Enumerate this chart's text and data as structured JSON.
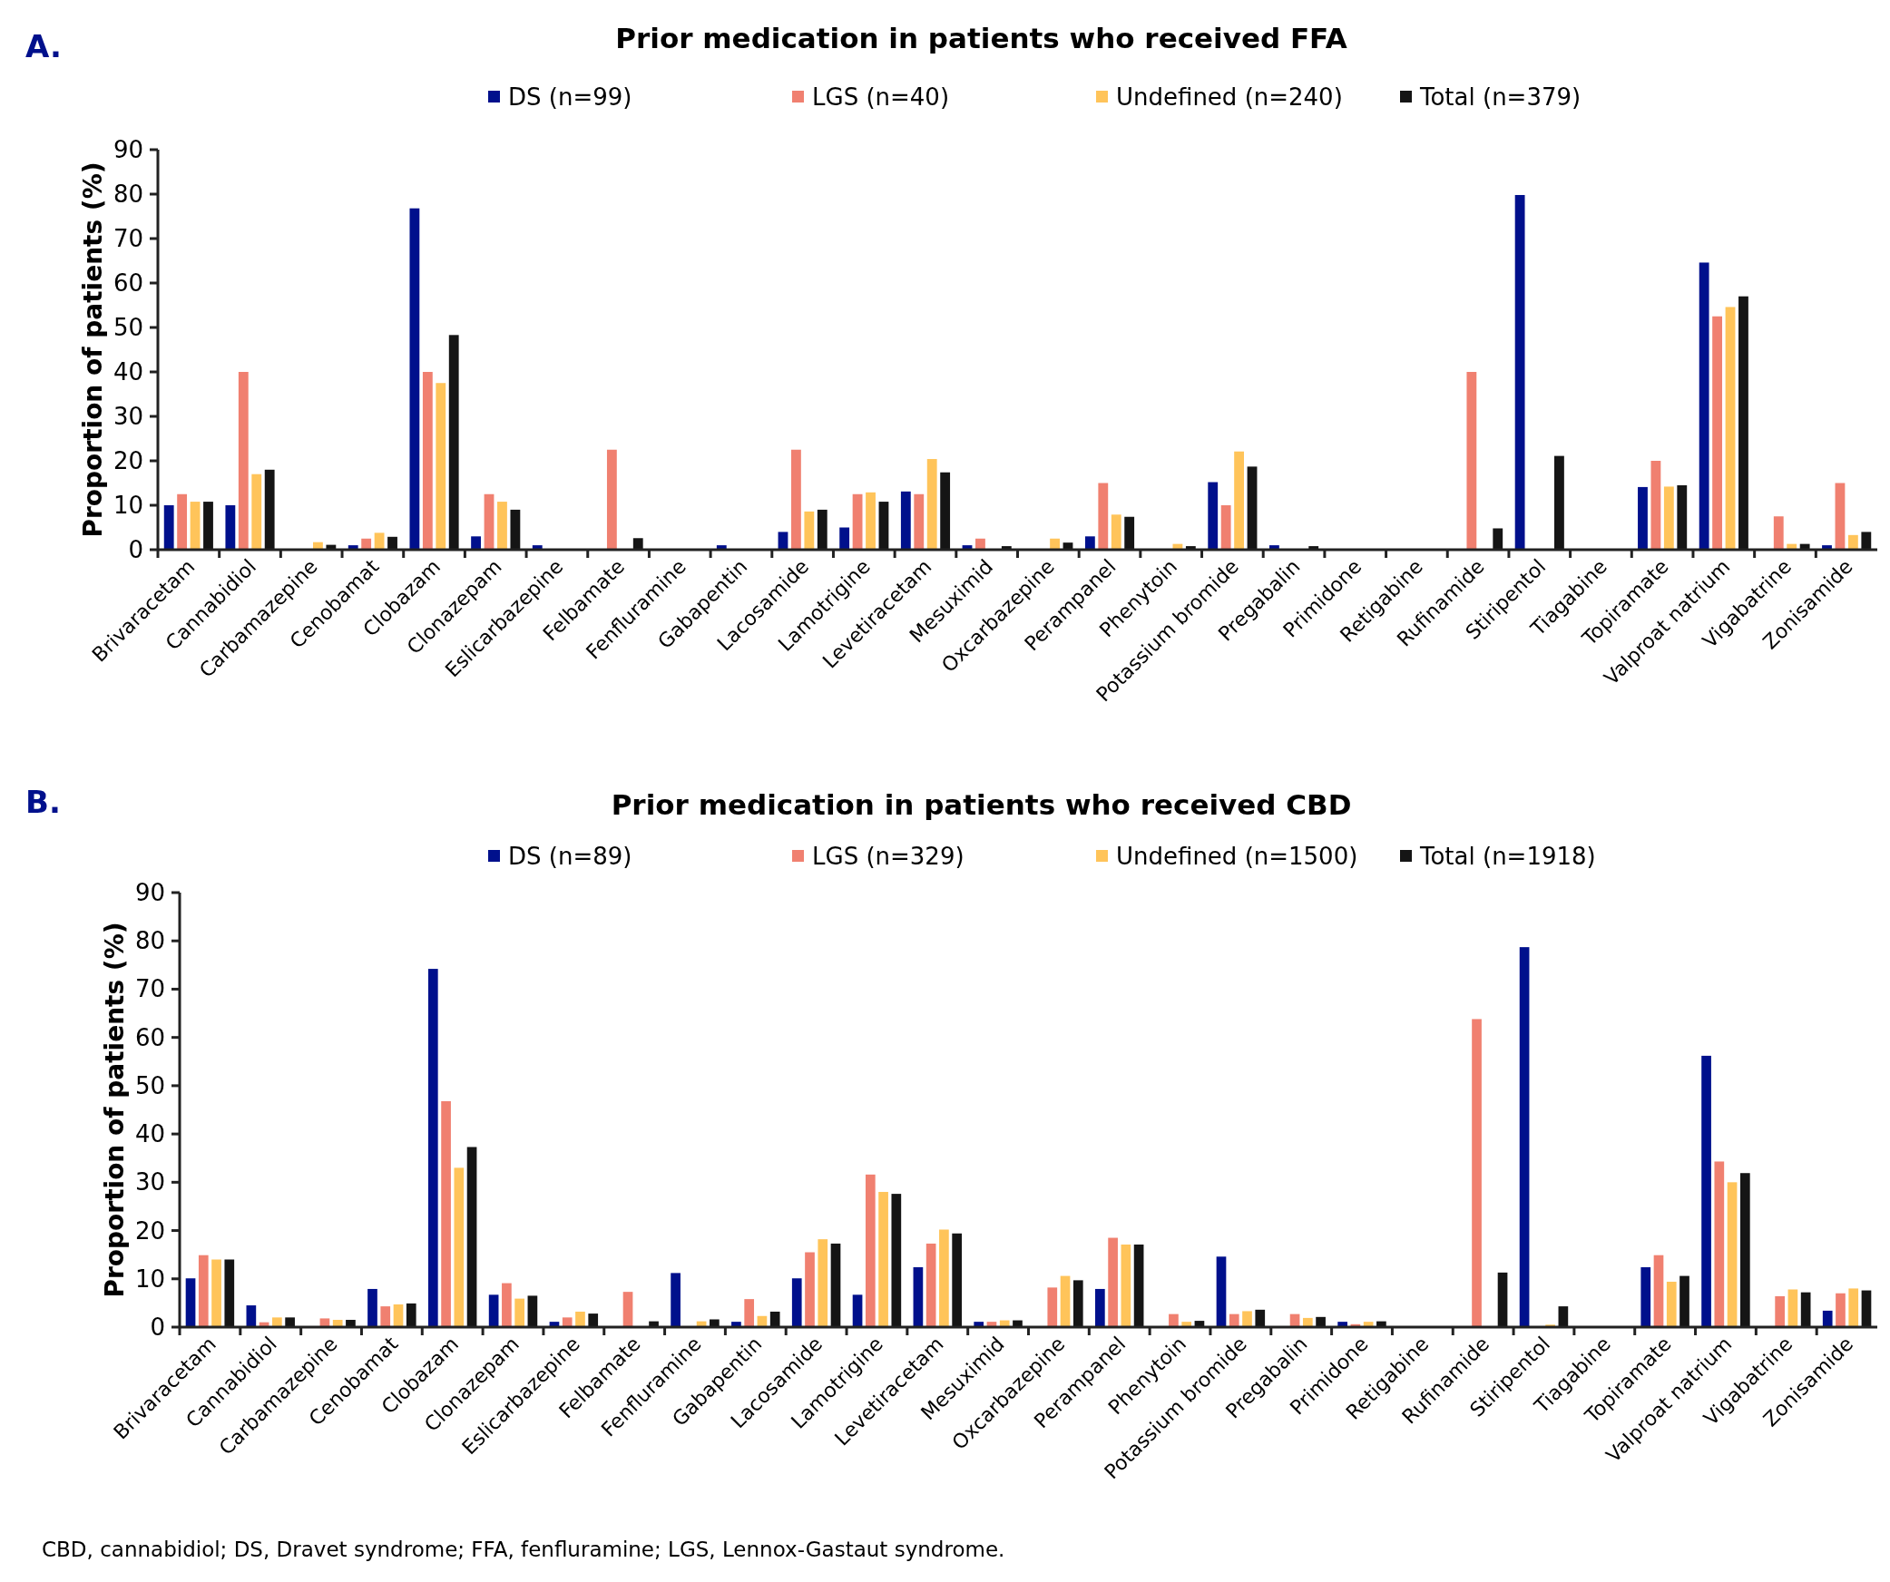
{
  "chart_data": [
    {
      "type": "bar",
      "title": "Prior medication in patients who received FFA",
      "ylabel": "Proportion of patients (%)",
      "annotations": [
        "A."
      ],
      "categories": [
        "Brivaracetam",
        "Cannabidiol",
        "Carbamazepine",
        "Cenobamat",
        "Clobazam",
        "Clonazepam",
        "Eslicarbazepine",
        "Felbamate",
        "Fenfluramine",
        "Gabapentin",
        "Lacosamide",
        "Lamotrigine",
        "Levetiracetam",
        "Mesuximid",
        "Oxcarbazepine",
        "Perampanel",
        "Phenytoin",
        "Potassium bromide",
        "Pregabalin",
        "Primidone",
        "Retigabine",
        "Rufinamide",
        "Stiripentol",
        "Tiagabine",
        "Topiramate",
        "Valproat natrium",
        "Vigabatrine",
        "Zonisamide"
      ],
      "series": [
        {
          "name": "DS (n=99)",
          "color": "#00108c",
          "values": [
            10,
            10,
            0,
            1,
            76.8,
            3,
            1,
            0,
            0,
            1,
            4,
            5,
            13.1,
            1,
            0,
            3,
            0,
            15.2,
            1,
            0,
            0,
            0,
            79.8,
            0,
            14.1,
            64.6,
            0,
            1
          ]
        },
        {
          "name": "LGS (n=40)",
          "color": "#f08070",
          "values": [
            12.5,
            40,
            0,
            2.5,
            40,
            12.5,
            0,
            22.5,
            0,
            0,
            22.5,
            12.5,
            12.5,
            2.5,
            0,
            15,
            0,
            10,
            0,
            0,
            0,
            40,
            0,
            0,
            20,
            52.5,
            7.5,
            15
          ]
        },
        {
          "name": "Undefined (n=240)",
          "color": "#ffc45a",
          "values": [
            10.8,
            17,
            1.7,
            3.8,
            37.5,
            10.8,
            0,
            0,
            0,
            0,
            8.6,
            12.9,
            20.4,
            0,
            2.5,
            7.9,
            1.3,
            22.1,
            0,
            0,
            0,
            0,
            0,
            0,
            14.2,
            54.6,
            1.3,
            3.3
          ]
        },
        {
          "name": "Total (n=379)",
          "color": "#151515",
          "values": [
            10.8,
            18,
            1.1,
            2.9,
            48.3,
            9,
            0,
            2.6,
            0,
            0,
            9,
            10.8,
            17.4,
            0.8,
            1.6,
            7.4,
            0.8,
            18.7,
            0.8,
            0,
            0,
            4.8,
            21.1,
            0,
            14.5,
            57,
            1.3,
            4
          ]
        }
      ],
      "ylim": [
        0,
        90
      ],
      "yticks": [
        0,
        10,
        20,
        30,
        40,
        50,
        60,
        70,
        80,
        90
      ],
      "legend": "top"
    },
    {
      "type": "bar",
      "title": "Prior medication in patients who received CBD",
      "ylabel": "Proportion of patients (%)",
      "annotations": [
        "B.",
        "CBD, cannabidiol; DS, Dravet syndrome; FFA, fenfluramine; LGS, Lennox-Gastaut syndrome."
      ],
      "categories": [
        "Brivaracetam",
        "Cannabidiol",
        "Carbamazepine",
        "Cenobamat",
        "Clobazam",
        "Clonazepam",
        "Eslicarbazepine",
        "Felbamate",
        "Fenfluramine",
        "Gabapentin",
        "Lacosamide",
        "Lamotrigine",
        "Levetiracetam",
        "Mesuximid",
        "Oxcarbazepine",
        "Perampanel",
        "Phenytoin",
        "Potassium bromide",
        "Pregabalin",
        "Primidone",
        "Retigabine",
        "Rufinamide",
        "Stiripentol",
        "Tiagabine",
        "Topiramate",
        "Valproat natrium",
        "Vigabatrine",
        "Zonisamide"
      ],
      "series": [
        {
          "name": "DS (n=89)",
          "color": "#00108c",
          "values": [
            10.1,
            4.5,
            0,
            7.9,
            74.2,
            6.7,
            1.1,
            0,
            11.2,
            1.1,
            10.1,
            6.7,
            12.4,
            1.1,
            0,
            7.9,
            0,
            14.6,
            0,
            1.1,
            0,
            0,
            78.7,
            0,
            12.4,
            56.2,
            0,
            3.4
          ]
        },
        {
          "name": "LGS (n=329)",
          "color": "#f08070",
          "values": [
            14.9,
            1,
            1.8,
            4.3,
            46.8,
            9.1,
            2,
            7.3,
            0,
            5.8,
            15.5,
            31.6,
            17.3,
            1.1,
            8.2,
            18.5,
            2.7,
            2.7,
            2.7,
            0.6,
            0,
            63.8,
            0,
            0,
            14.9,
            34.3,
            6.4,
            7
          ]
        },
        {
          "name": "Undefined (n=1500)",
          "color": "#ffc45a",
          "values": [
            14,
            2,
            1.5,
            4.7,
            33,
            5.9,
            3.2,
            0,
            1.2,
            2.3,
            18.2,
            28,
            20.2,
            1.4,
            10.6,
            17.1,
            1.1,
            3.3,
            1.9,
            1.1,
            0,
            0,
            0.5,
            0,
            9.4,
            30,
            7.8,
            8
          ]
        },
        {
          "name": "Total (n=1918)",
          "color": "#151515",
          "values": [
            14,
            2,
            1.5,
            4.9,
            37.3,
            6.5,
            2.8,
            1.2,
            1.6,
            3.2,
            17.3,
            27.6,
            19.4,
            1.4,
            9.7,
            17.1,
            1.3,
            3.6,
            2.1,
            1.2,
            0,
            11.3,
            4.3,
            0,
            10.6,
            31.9,
            7.2,
            7.6
          ]
        }
      ],
      "ylim": [
        0,
        90
      ],
      "yticks": [
        0,
        10,
        20,
        30,
        40,
        50,
        60,
        70,
        80,
        90
      ],
      "legend": "top"
    }
  ]
}
